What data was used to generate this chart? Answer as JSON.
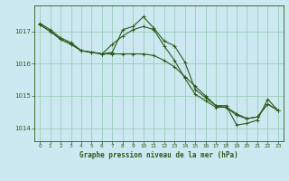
{
  "title": "Graphe pression niveau de la mer (hPa)",
  "bg_color": "#cce8f0",
  "grid_color": "#99ccbb",
  "line_color": "#2d5a1b",
  "xlim": [
    -0.5,
    23.5
  ],
  "ylim": [
    1013.6,
    1017.8
  ],
  "yticks": [
    1014,
    1015,
    1016,
    1017
  ],
  "xticks": [
    0,
    1,
    2,
    3,
    4,
    5,
    6,
    7,
    8,
    9,
    10,
    11,
    12,
    13,
    14,
    15,
    16,
    17,
    18,
    19,
    20,
    21,
    22,
    23
  ],
  "series1_x": [
    0,
    1,
    2,
    3,
    4,
    5,
    6,
    7,
    8,
    9,
    10,
    11,
    12,
    13,
    14,
    15,
    16,
    17,
    18,
    19,
    20,
    21,
    22,
    23
  ],
  "series1_y": [
    1017.2,
    1017.0,
    1016.75,
    1016.6,
    1016.4,
    1016.35,
    1016.3,
    1016.3,
    1016.3,
    1016.3,
    1016.3,
    1016.25,
    1016.1,
    1015.9,
    1015.6,
    1015.3,
    1015.0,
    1014.7,
    1014.65,
    1014.45,
    1014.3,
    1014.35,
    1014.75,
    1014.55
  ],
  "series2_x": [
    0,
    1,
    2,
    3,
    4,
    5,
    6,
    7,
    8,
    9,
    10,
    11,
    12,
    13,
    14,
    15,
    16,
    17,
    18,
    19,
    20,
    21,
    22,
    23
  ],
  "series2_y": [
    1017.2,
    1017.0,
    1016.75,
    1016.6,
    1016.4,
    1016.35,
    1016.3,
    1016.6,
    1016.85,
    1017.05,
    1017.15,
    1017.05,
    1016.55,
    1016.1,
    1015.55,
    1015.05,
    1014.85,
    1014.65,
    1014.65,
    1014.4,
    1014.3,
    1014.35,
    1014.75,
    1014.55
  ],
  "series3_x": [
    0,
    1,
    2,
    3,
    4,
    5,
    6,
    7,
    8,
    9,
    10,
    11,
    12,
    13,
    14,
    15,
    16,
    17,
    18,
    19,
    20,
    21,
    22,
    23
  ],
  "series3_y": [
    1017.25,
    1017.05,
    1016.8,
    1016.65,
    1016.4,
    1016.35,
    1016.3,
    1016.35,
    1017.05,
    1017.15,
    1017.45,
    1017.1,
    1016.7,
    1016.55,
    1016.05,
    1015.2,
    1014.95,
    1014.7,
    1014.7,
    1014.1,
    1014.15,
    1014.25,
    1014.9,
    1014.55
  ]
}
